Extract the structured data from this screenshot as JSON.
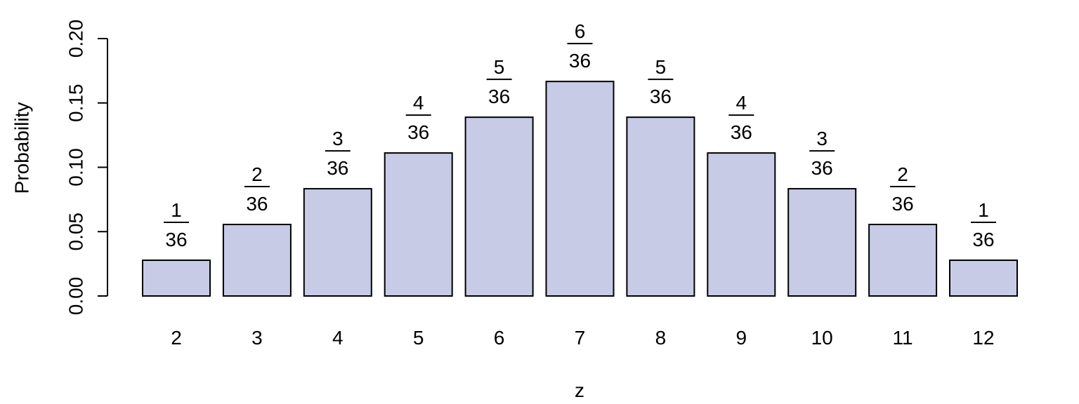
{
  "chart_data": {
    "type": "bar",
    "categories": [
      "2",
      "3",
      "4",
      "5",
      "6",
      "7",
      "8",
      "9",
      "10",
      "11",
      "12"
    ],
    "values": [
      0.02778,
      0.05556,
      0.08333,
      0.11111,
      0.13889,
      0.16667,
      0.13889,
      0.11111,
      0.08333,
      0.05556,
      0.02778
    ],
    "data_labels": [
      {
        "numerator": "1",
        "denominator": "36"
      },
      {
        "numerator": "2",
        "denominator": "36"
      },
      {
        "numerator": "3",
        "denominator": "36"
      },
      {
        "numerator": "4",
        "denominator": "36"
      },
      {
        "numerator": "5",
        "denominator": "36"
      },
      {
        "numerator": "6",
        "denominator": "36"
      },
      {
        "numerator": "5",
        "denominator": "36"
      },
      {
        "numerator": "4",
        "denominator": "36"
      },
      {
        "numerator": "3",
        "denominator": "36"
      },
      {
        "numerator": "2",
        "denominator": "36"
      },
      {
        "numerator": "1",
        "denominator": "36"
      }
    ],
    "title": "",
    "xlabel": "z",
    "ylabel": "Probability",
    "ylim": [
      0,
      0.2
    ],
    "yticks": [
      "0.00",
      "0.05",
      "0.10",
      "0.15",
      "0.20"
    ],
    "ytick_values": [
      0,
      0.05,
      0.1,
      0.15,
      0.2
    ],
    "bar_color": "#c7cbe6",
    "edge_color": "#000000",
    "grid": false,
    "legend": "none"
  }
}
